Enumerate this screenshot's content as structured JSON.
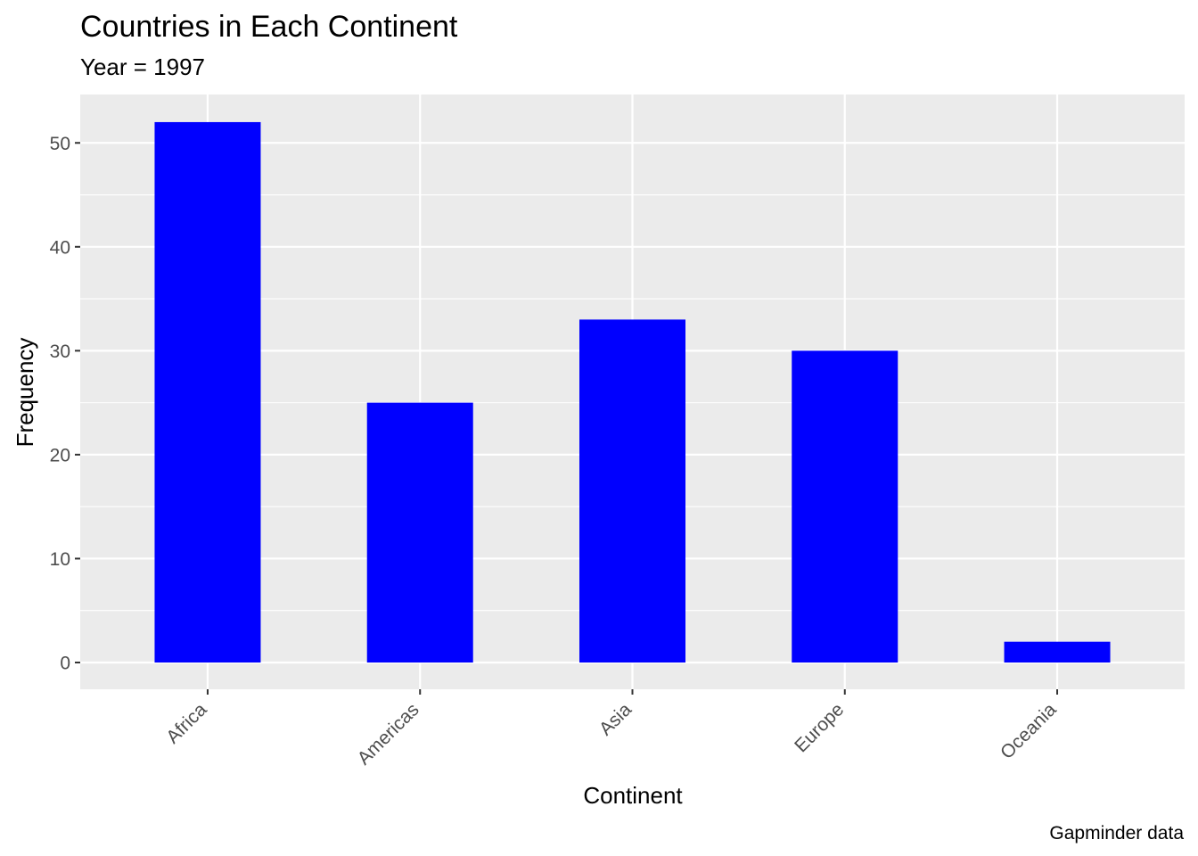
{
  "colors": {
    "panel_background": "#ebebeb",
    "gridline": "#ffffff",
    "bar_fill": "#0000ff",
    "tick": "#333333",
    "tick_label": "#4d4d4d"
  },
  "chart_data": {
    "type": "bar",
    "title": "Countries in Each Continent",
    "subtitle": "Year = 1997",
    "xlabel": "Continent",
    "ylabel": "Frequency",
    "caption": "Gapminder data",
    "categories": [
      "Africa",
      "Americas",
      "Asia",
      "Europe",
      "Oceania"
    ],
    "values": [
      52,
      25,
      33,
      30,
      2
    ],
    "ylim": [
      0,
      54.6
    ],
    "y_ticks": [
      0,
      10,
      20,
      30,
      40,
      50
    ],
    "x_tick_label_rotation": 45,
    "grid": true,
    "legend": "none"
  }
}
